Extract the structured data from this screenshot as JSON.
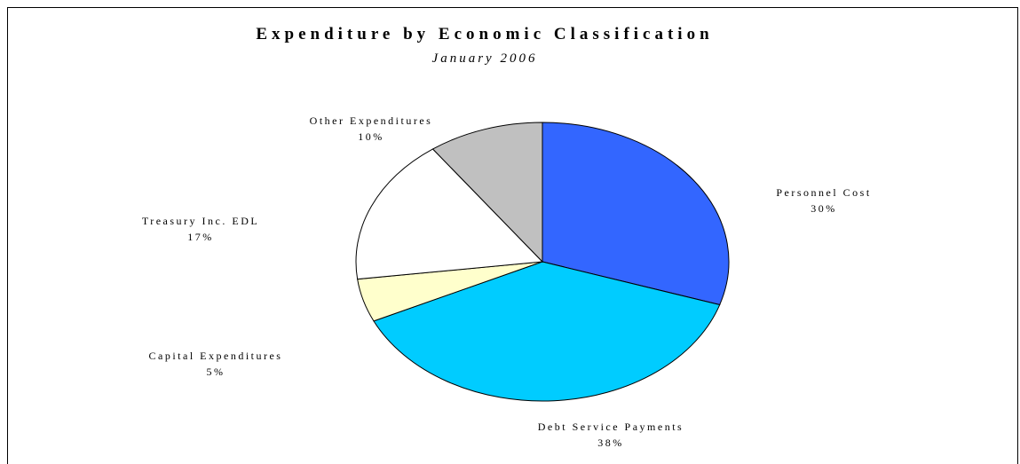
{
  "chart_data": {
    "type": "pie",
    "title": "Expenditure by Economic Classification",
    "subtitle": "January 2006",
    "slices": [
      {
        "label": "Personnel Cost",
        "value": 30,
        "display": "30%",
        "color": "#3366FF"
      },
      {
        "label": "Debt Service Payments",
        "value": 38,
        "display": "38%",
        "color": "#00CCFF"
      },
      {
        "label": "Capital Expenditures",
        "value": 5,
        "display": "5%",
        "color": "#FFFFCC"
      },
      {
        "label": "Treasury Inc. EDL",
        "value": 17,
        "display": "17%",
        "color": "#FFFFFF"
      },
      {
        "label": "Other Expenditures",
        "value": 10,
        "display": "10%",
        "color": "#C0C0C0"
      }
    ],
    "start_angle": "12 o'clock",
    "direction": "clockwise",
    "legend": "none"
  }
}
